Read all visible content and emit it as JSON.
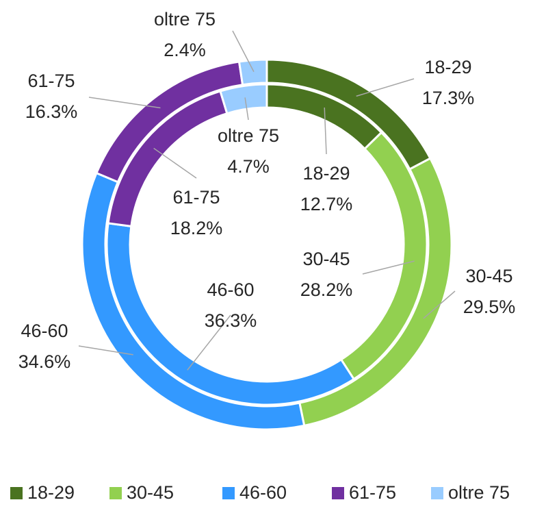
{
  "chart_data": {
    "type": "donut",
    "categories": [
      "18-29",
      "30-45",
      "46-60",
      "61-75",
      "oltre 75"
    ],
    "colors": [
      "#4a7320",
      "#92d050",
      "#3399ff",
      "#7030a0",
      "#99ccff"
    ],
    "series": [
      {
        "values": [
          17.3,
          29.5,
          34.6,
          16.3,
          2.4
        ],
        "value_labels": [
          "17.3%",
          "29.5%",
          "34.6%",
          "16.3%",
          "2.4%"
        ]
      },
      {
        "values": [
          12.7,
          28.2,
          36.3,
          18.2,
          4.7
        ],
        "value_labels": [
          "12.7%",
          "28.2%",
          "36.3%",
          "18.2%",
          "4.7%"
        ]
      }
    ],
    "legend": "bottom"
  }
}
